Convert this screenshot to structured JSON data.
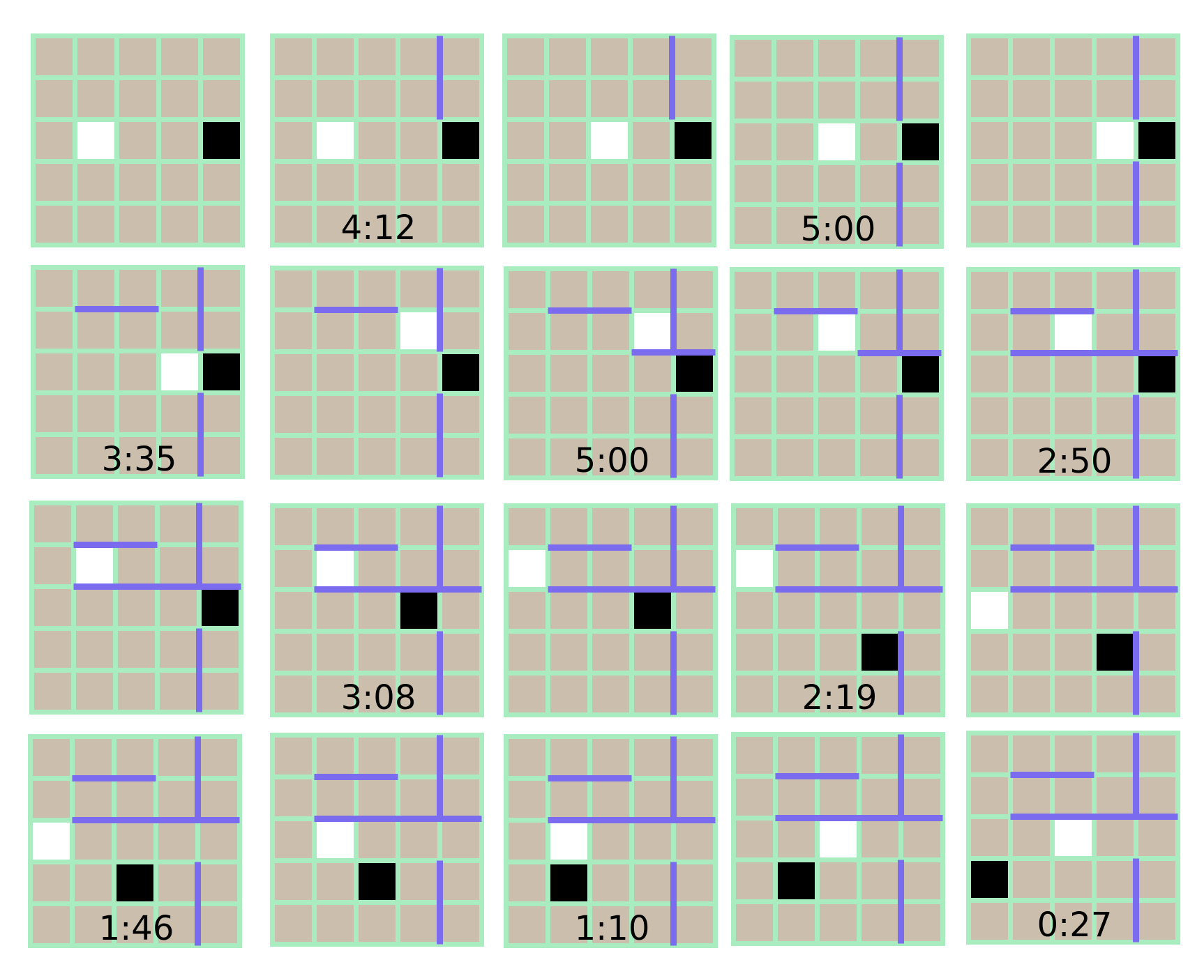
{
  "colors": {
    "background": "#ffffff",
    "grid_line": "#a9ecbf",
    "cell": "#cbbeac",
    "wall": "#7a6bef",
    "player": "#ffffff",
    "goal": "#000000"
  },
  "board_size": [
    5,
    5
  ],
  "boards": [
    {
      "timer": "",
      "player": [
        2,
        1
      ],
      "goal": [
        2,
        4
      ],
      "walls": []
    },
    {
      "timer": "4:12",
      "player": [
        2,
        1
      ],
      "goal": [
        2,
        4
      ],
      "walls": [
        {
          "type": "v",
          "line": 4,
          "from": 0,
          "to": 2
        }
      ]
    },
    {
      "timer": "",
      "player": [
        2,
        2
      ],
      "goal": [
        2,
        4
      ],
      "walls": [
        {
          "type": "v",
          "line": 4,
          "from": 0,
          "to": 2
        }
      ]
    },
    {
      "timer": "5:00",
      "player": [
        2,
        2
      ],
      "goal": [
        2,
        4
      ],
      "walls": [
        {
          "type": "v",
          "line": 4,
          "from": 0,
          "to": 2
        },
        {
          "type": "v",
          "line": 4,
          "from": 3,
          "to": 5
        }
      ]
    },
    {
      "timer": "",
      "player": [
        2,
        3
      ],
      "goal": [
        2,
        4
      ],
      "walls": [
        {
          "type": "v",
          "line": 4,
          "from": 0,
          "to": 2
        },
        {
          "type": "v",
          "line": 4,
          "from": 3,
          "to": 5
        }
      ]
    },
    {
      "timer": "3:35",
      "player": [
        2,
        3
      ],
      "goal": [
        2,
        4
      ],
      "walls": [
        {
          "type": "h",
          "line": 1,
          "from": 1,
          "to": 3
        },
        {
          "type": "v",
          "line": 4,
          "from": 0,
          "to": 2
        },
        {
          "type": "v",
          "line": 4,
          "from": 3,
          "to": 5
        }
      ]
    },
    {
      "timer": "",
      "player": [
        1,
        3
      ],
      "goal": [
        2,
        4
      ],
      "walls": [
        {
          "type": "h",
          "line": 1,
          "from": 1,
          "to": 3
        },
        {
          "type": "v",
          "line": 4,
          "from": 0,
          "to": 2
        },
        {
          "type": "v",
          "line": 4,
          "from": 3,
          "to": 5
        }
      ]
    },
    {
      "timer": "5:00",
      "player": [
        1,
        3
      ],
      "goal": [
        2,
        4
      ],
      "walls": [
        {
          "type": "h",
          "line": 1,
          "from": 1,
          "to": 3
        },
        {
          "type": "h",
          "line": 2,
          "from": 3,
          "to": 5
        },
        {
          "type": "v",
          "line": 4,
          "from": 0,
          "to": 2
        },
        {
          "type": "v",
          "line": 4,
          "from": 3,
          "to": 5
        }
      ]
    },
    {
      "timer": "",
      "player": [
        1,
        2
      ],
      "goal": [
        2,
        4
      ],
      "walls": [
        {
          "type": "h",
          "line": 1,
          "from": 1,
          "to": 3
        },
        {
          "type": "h",
          "line": 2,
          "from": 3,
          "to": 5
        },
        {
          "type": "v",
          "line": 4,
          "from": 0,
          "to": 2
        },
        {
          "type": "v",
          "line": 4,
          "from": 3,
          "to": 5
        }
      ]
    },
    {
      "timer": "2:50",
      "player": [
        1,
        2
      ],
      "goal": [
        2,
        4
      ],
      "walls": [
        {
          "type": "h",
          "line": 1,
          "from": 1,
          "to": 3
        },
        {
          "type": "h",
          "line": 2,
          "from": 1,
          "to": 3
        },
        {
          "type": "h",
          "line": 2,
          "from": 3,
          "to": 5
        },
        {
          "type": "v",
          "line": 4,
          "from": 0,
          "to": 2
        },
        {
          "type": "v",
          "line": 4,
          "from": 3,
          "to": 5
        }
      ]
    },
    {
      "timer": "",
      "player": [
        1,
        1
      ],
      "goal": [
        2,
        4
      ],
      "walls": [
        {
          "type": "h",
          "line": 1,
          "from": 1,
          "to": 3
        },
        {
          "type": "h",
          "line": 2,
          "from": 1,
          "to": 3
        },
        {
          "type": "h",
          "line": 2,
          "from": 3,
          "to": 5
        },
        {
          "type": "v",
          "line": 4,
          "from": 0,
          "to": 2
        },
        {
          "type": "v",
          "line": 4,
          "from": 3,
          "to": 5
        }
      ]
    },
    {
      "timer": "3:08",
      "player": [
        1,
        1
      ],
      "goal": [
        2,
        3
      ],
      "walls": [
        {
          "type": "h",
          "line": 1,
          "from": 1,
          "to": 3
        },
        {
          "type": "h",
          "line": 2,
          "from": 1,
          "to": 3
        },
        {
          "type": "h",
          "line": 2,
          "from": 3,
          "to": 5
        },
        {
          "type": "v",
          "line": 4,
          "from": 0,
          "to": 2
        },
        {
          "type": "v",
          "line": 4,
          "from": 3,
          "to": 5
        }
      ]
    },
    {
      "timer": "",
      "player": [
        1,
        0
      ],
      "goal": [
        2,
        3
      ],
      "walls": [
        {
          "type": "h",
          "line": 1,
          "from": 1,
          "to": 3
        },
        {
          "type": "h",
          "line": 2,
          "from": 1,
          "to": 3
        },
        {
          "type": "h",
          "line": 2,
          "from": 3,
          "to": 5
        },
        {
          "type": "v",
          "line": 4,
          "from": 0,
          "to": 2
        },
        {
          "type": "v",
          "line": 4,
          "from": 3,
          "to": 5
        }
      ]
    },
    {
      "timer": "2:19",
      "player": [
        1,
        0
      ],
      "goal": [
        3,
        3
      ],
      "walls": [
        {
          "type": "h",
          "line": 1,
          "from": 1,
          "to": 3
        },
        {
          "type": "h",
          "line": 2,
          "from": 1,
          "to": 3
        },
        {
          "type": "h",
          "line": 2,
          "from": 3,
          "to": 5
        },
        {
          "type": "v",
          "line": 4,
          "from": 0,
          "to": 2
        },
        {
          "type": "v",
          "line": 4,
          "from": 3,
          "to": 5
        }
      ]
    },
    {
      "timer": "",
      "player": [
        2,
        0
      ],
      "goal": [
        3,
        3
      ],
      "walls": [
        {
          "type": "h",
          "line": 1,
          "from": 1,
          "to": 3
        },
        {
          "type": "h",
          "line": 2,
          "from": 1,
          "to": 3
        },
        {
          "type": "h",
          "line": 2,
          "from": 3,
          "to": 5
        },
        {
          "type": "v",
          "line": 4,
          "from": 0,
          "to": 2
        },
        {
          "type": "v",
          "line": 4,
          "from": 3,
          "to": 5
        }
      ]
    },
    {
      "timer": "1:46",
      "player": [
        2,
        0
      ],
      "goal": [
        3,
        2
      ],
      "walls": [
        {
          "type": "h",
          "line": 1,
          "from": 1,
          "to": 3
        },
        {
          "type": "h",
          "line": 2,
          "from": 1,
          "to": 3
        },
        {
          "type": "h",
          "line": 2,
          "from": 3,
          "to": 5
        },
        {
          "type": "v",
          "line": 4,
          "from": 0,
          "to": 2
        },
        {
          "type": "v",
          "line": 4,
          "from": 3,
          "to": 5
        }
      ]
    },
    {
      "timer": "",
      "player": [
        2,
        1
      ],
      "goal": [
        3,
        2
      ],
      "walls": [
        {
          "type": "h",
          "line": 1,
          "from": 1,
          "to": 3
        },
        {
          "type": "h",
          "line": 2,
          "from": 1,
          "to": 3
        },
        {
          "type": "h",
          "line": 2,
          "from": 3,
          "to": 5
        },
        {
          "type": "v",
          "line": 4,
          "from": 0,
          "to": 2
        },
        {
          "type": "v",
          "line": 4,
          "from": 3,
          "to": 5
        }
      ]
    },
    {
      "timer": "1:10",
      "player": [
        2,
        1
      ],
      "goal": [
        3,
        1
      ],
      "walls": [
        {
          "type": "h",
          "line": 1,
          "from": 1,
          "to": 3
        },
        {
          "type": "h",
          "line": 2,
          "from": 1,
          "to": 3
        },
        {
          "type": "h",
          "line": 2,
          "from": 3,
          "to": 5
        },
        {
          "type": "v",
          "line": 4,
          "from": 0,
          "to": 2
        },
        {
          "type": "v",
          "line": 4,
          "from": 3,
          "to": 5
        }
      ]
    },
    {
      "timer": "",
      "player": [
        2,
        2
      ],
      "goal": [
        3,
        1
      ],
      "walls": [
        {
          "type": "h",
          "line": 1,
          "from": 1,
          "to": 3
        },
        {
          "type": "h",
          "line": 2,
          "from": 1,
          "to": 3
        },
        {
          "type": "h",
          "line": 2,
          "from": 3,
          "to": 5
        },
        {
          "type": "v",
          "line": 4,
          "from": 0,
          "to": 2
        },
        {
          "type": "v",
          "line": 4,
          "from": 3,
          "to": 5
        }
      ]
    },
    {
      "timer": "0:27",
      "player": [
        2,
        2
      ],
      "goal": [
        3,
        0
      ],
      "walls": [
        {
          "type": "h",
          "line": 1,
          "from": 1,
          "to": 3
        },
        {
          "type": "h",
          "line": 2,
          "from": 1,
          "to": 3
        },
        {
          "type": "h",
          "line": 2,
          "from": 3,
          "to": 5
        },
        {
          "type": "v",
          "line": 4,
          "from": 0,
          "to": 2
        },
        {
          "type": "v",
          "line": 4,
          "from": 3,
          "to": 5
        }
      ]
    }
  ]
}
